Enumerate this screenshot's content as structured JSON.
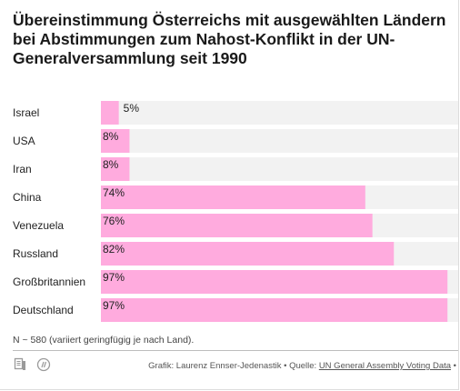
{
  "title": "Übereinstimmung Österreichs mit ausgewählten Ländern bei Abstimmungen zum Nahost-Konflikt in der UN-Generalversammlung seit 1990",
  "colors": {
    "bar": "#ffabde",
    "row_background": "#f2f2f2"
  },
  "chart_data": {
    "type": "bar",
    "orientation": "horizontal",
    "categories": [
      "Israel",
      "USA",
      "Iran",
      "China",
      "Venezuela",
      "Russland",
      "Großbritannien",
      "Deutschland"
    ],
    "values": [
      5,
      8,
      8,
      74,
      76,
      82,
      97,
      97
    ],
    "value_labels": [
      "5%",
      "8%",
      "8%",
      "74%",
      "76%",
      "82%",
      "97%",
      "97%"
    ],
    "unit": "%",
    "xlim": [
      0,
      100
    ],
    "grid": false
  },
  "note": "N ~ 580 (variiert geringfügig je nach Land).",
  "footer": {
    "credit": "Grafik: Laurenz Ennser-Jedenastik",
    "separator": "•",
    "source_prefix": "Quelle:",
    "source_link": "UN General Assembly Voting Data",
    "icons": [
      "document-icon",
      "embed-code-icon"
    ]
  }
}
